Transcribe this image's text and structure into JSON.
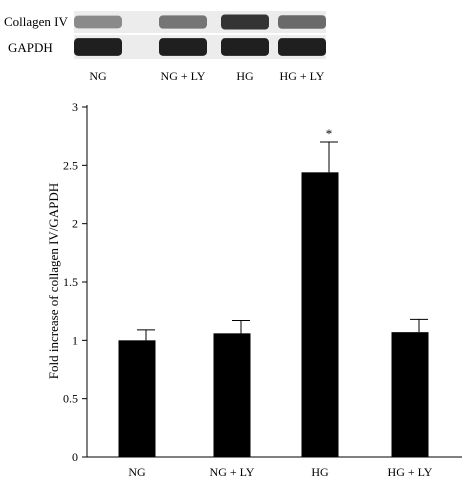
{
  "blot": {
    "rows": [
      {
        "label": "Collagen IV",
        "intensity": [
          0.45,
          0.55,
          0.85,
          0.6
        ]
      },
      {
        "label": "GAPDH",
        "intensity": [
          0.95,
          0.95,
          0.95,
          0.95
        ]
      }
    ],
    "lane_labels": [
      "NG",
      "NG + LY",
      "HG",
      "HG + LY"
    ]
  },
  "chart_data": {
    "type": "bar",
    "categories": [
      "NG",
      "NG + LY",
      "HG",
      "HG + LY"
    ],
    "values": [
      1.0,
      1.06,
      2.44,
      1.07
    ],
    "errors": [
      0.09,
      0.11,
      0.26,
      0.11
    ],
    "significance": [
      "",
      "",
      "*",
      ""
    ],
    "ylabel": "Fold increase of collagen IV/GAPDH",
    "xlabel": "",
    "ylim": [
      0,
      3
    ],
    "yticks": [
      "0",
      "0.5",
      "1",
      "1.5",
      "2",
      "2.5",
      "3"
    ],
    "bar_color": "#000000",
    "grid": false
  }
}
